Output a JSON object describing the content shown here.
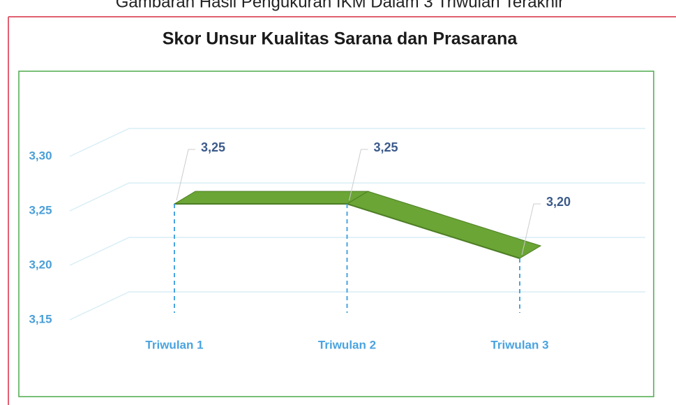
{
  "header": "Gambaran Hasil Pengukuran IKM Dalam 3 Triwulan Terakhir",
  "chart_data": {
    "type": "line3d",
    "title": "Skor Unsur Kualitas Sarana dan Prasarana",
    "categories": [
      "Triwulan 1",
      "Triwulan 2",
      "Triwulan 3"
    ],
    "values": [
      3.25,
      3.25,
      3.2
    ],
    "value_labels": [
      "3,25",
      "3,25",
      "3,20"
    ],
    "color": "#6aa535",
    "ylim": [
      3.15,
      3.3
    ],
    "yticks": [
      {
        "value": 3.15,
        "label": "3,15"
      },
      {
        "value": 3.2,
        "label": "3,20"
      },
      {
        "value": 3.25,
        "label": "3,25"
      },
      {
        "value": 3.3,
        "label": "3,30"
      }
    ],
    "grid": true
  }
}
